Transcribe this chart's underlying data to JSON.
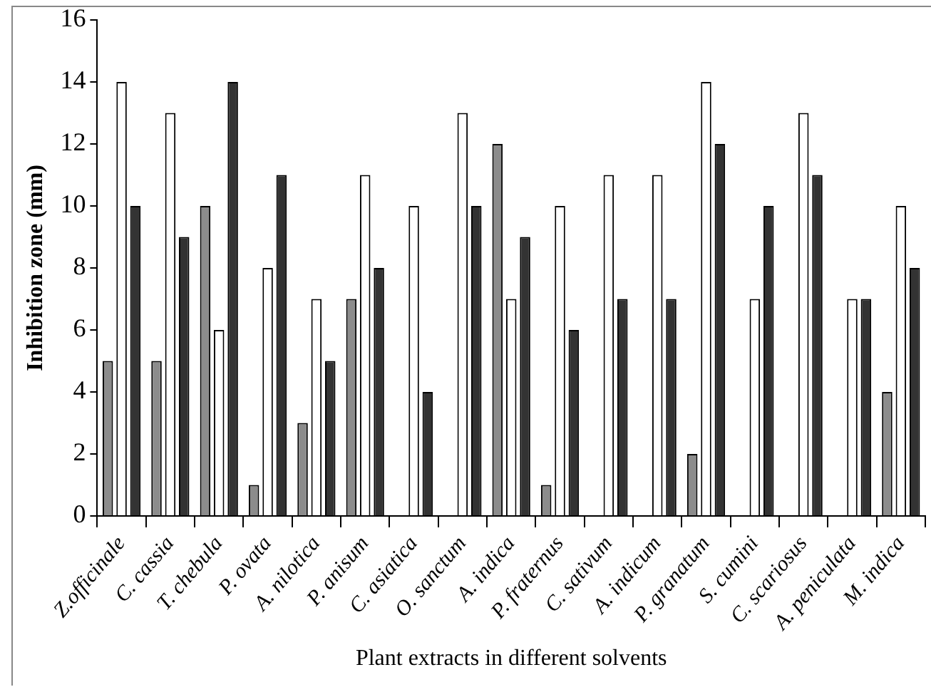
{
  "chart_data": {
    "type": "bar",
    "ylabel": "Inhibition zone (mm)",
    "xlabel": "Plant extracts in different solvents",
    "categories": [
      "Z.officinale",
      "C. cassia",
      "T. chebula",
      "P. ovata",
      "A. nilotica",
      "P. anisum",
      "C. asiatica",
      "O. sanctum",
      "A. indica",
      "P. fraternus",
      "C. sativum",
      "A. indicum",
      "P. granatum",
      "S. cumini",
      "C. scariosus",
      "A. peniculata",
      "M. indica"
    ],
    "series": [
      {
        "color": "#8c8c8c",
        "values": [
          5,
          5,
          10,
          1,
          3,
          7,
          null,
          null,
          12,
          1,
          null,
          null,
          2,
          null,
          null,
          null,
          4
        ]
      },
      {
        "color": "#ffffff",
        "values": [
          14,
          13,
          6,
          8,
          7,
          11,
          10,
          13,
          7,
          10,
          11,
          11,
          14,
          7,
          13,
          7,
          10
        ]
      },
      {
        "color": "#333333",
        "values": [
          10,
          9,
          14,
          11,
          5,
          8,
          4,
          10,
          9,
          6,
          7,
          7,
          12,
          10,
          11,
          7,
          8
        ]
      }
    ],
    "ylim": [
      0,
      16
    ],
    "yticks": [
      0,
      2,
      4,
      6,
      8,
      10,
      12,
      14,
      16
    ],
    "grid": false,
    "legend": false
  }
}
